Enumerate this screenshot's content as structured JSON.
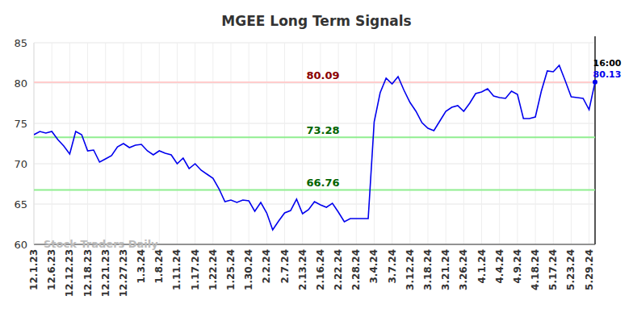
{
  "chart_data": {
    "type": "line",
    "title": "MGEE Long Term Signals",
    "watermark": "Stock Traders Daily",
    "last_time": "16:00",
    "categories": [
      "12.1.23",
      null,
      null,
      "12.6.23",
      null,
      null,
      "12.12.23",
      null,
      null,
      "12.18.23",
      null,
      null,
      "12.21.23",
      null,
      null,
      "12.27.23",
      null,
      null,
      "1.3.24",
      null,
      null,
      "1.8.24",
      null,
      null,
      "1.11.24",
      null,
      null,
      "1.17.24",
      null,
      null,
      "1.22.24",
      null,
      null,
      "1.25.24",
      null,
      null,
      "1.30.24",
      null,
      null,
      "2.2.24",
      null,
      null,
      "2.7.24",
      null,
      null,
      "2.13.24",
      null,
      null,
      "2.16.24",
      null,
      null,
      "2.22.24",
      null,
      null,
      "2.28.24",
      null,
      null,
      "3.4.24",
      null,
      null,
      "3.7.24",
      null,
      null,
      "3.12.24",
      null,
      null,
      "3.18.24",
      null,
      null,
      "3.21.24",
      null,
      null,
      "3.26.24",
      null,
      null,
      "4.1.24",
      null,
      null,
      "4.4.24",
      null,
      null,
      "4.9.24",
      null,
      null,
      "4.18.24",
      null,
      null,
      "5.17.24",
      null,
      null,
      "5.23.24",
      null,
      null,
      "5.29.24",
      null
    ],
    "values": [
      73.6,
      74.0,
      73.8,
      74.0,
      73.0,
      72.2,
      71.2,
      74.0,
      73.6,
      71.6,
      71.7,
      70.2,
      70.6,
      71.0,
      72.1,
      72.5,
      72.0,
      72.3,
      72.4,
      71.6,
      71.1,
      71.6,
      71.3,
      71.1,
      70.0,
      70.7,
      69.4,
      70.0,
      69.2,
      68.7,
      68.2,
      66.9,
      65.3,
      65.5,
      65.2,
      65.5,
      65.4,
      64.1,
      65.2,
      63.9,
      61.8,
      62.9,
      63.9,
      64.2,
      65.6,
      63.8,
      64.3,
      65.3,
      64.9,
      64.6,
      65.1,
      64.0,
      62.8,
      63.2,
      63.2,
      63.2,
      63.2,
      75.2,
      78.8,
      80.6,
      79.9,
      80.8,
      79.1,
      77.6,
      76.5,
      75.1,
      74.4,
      74.1,
      75.3,
      76.5,
      77.0,
      77.2,
      76.5,
      77.5,
      78.7,
      78.9,
      79.3,
      78.4,
      78.2,
      78.1,
      79.0,
      78.6,
      75.6,
      75.6,
      75.8,
      79.0,
      81.5,
      81.4,
      82.2,
      80.3,
      78.3,
      78.2,
      78.1,
      76.7,
      80.13
    ],
    "color": "#0000ee",
    "ylim": [
      60,
      85
    ],
    "yticks": [
      60,
      65,
      70,
      75,
      80,
      85
    ],
    "grid": true,
    "reference_lines": [
      {
        "value": 80.09,
        "color": "#ffcccc"
      },
      {
        "value": 73.28,
        "color": "#90ee90"
      },
      {
        "value": 66.76,
        "color": "#90ee90"
      }
    ]
  }
}
